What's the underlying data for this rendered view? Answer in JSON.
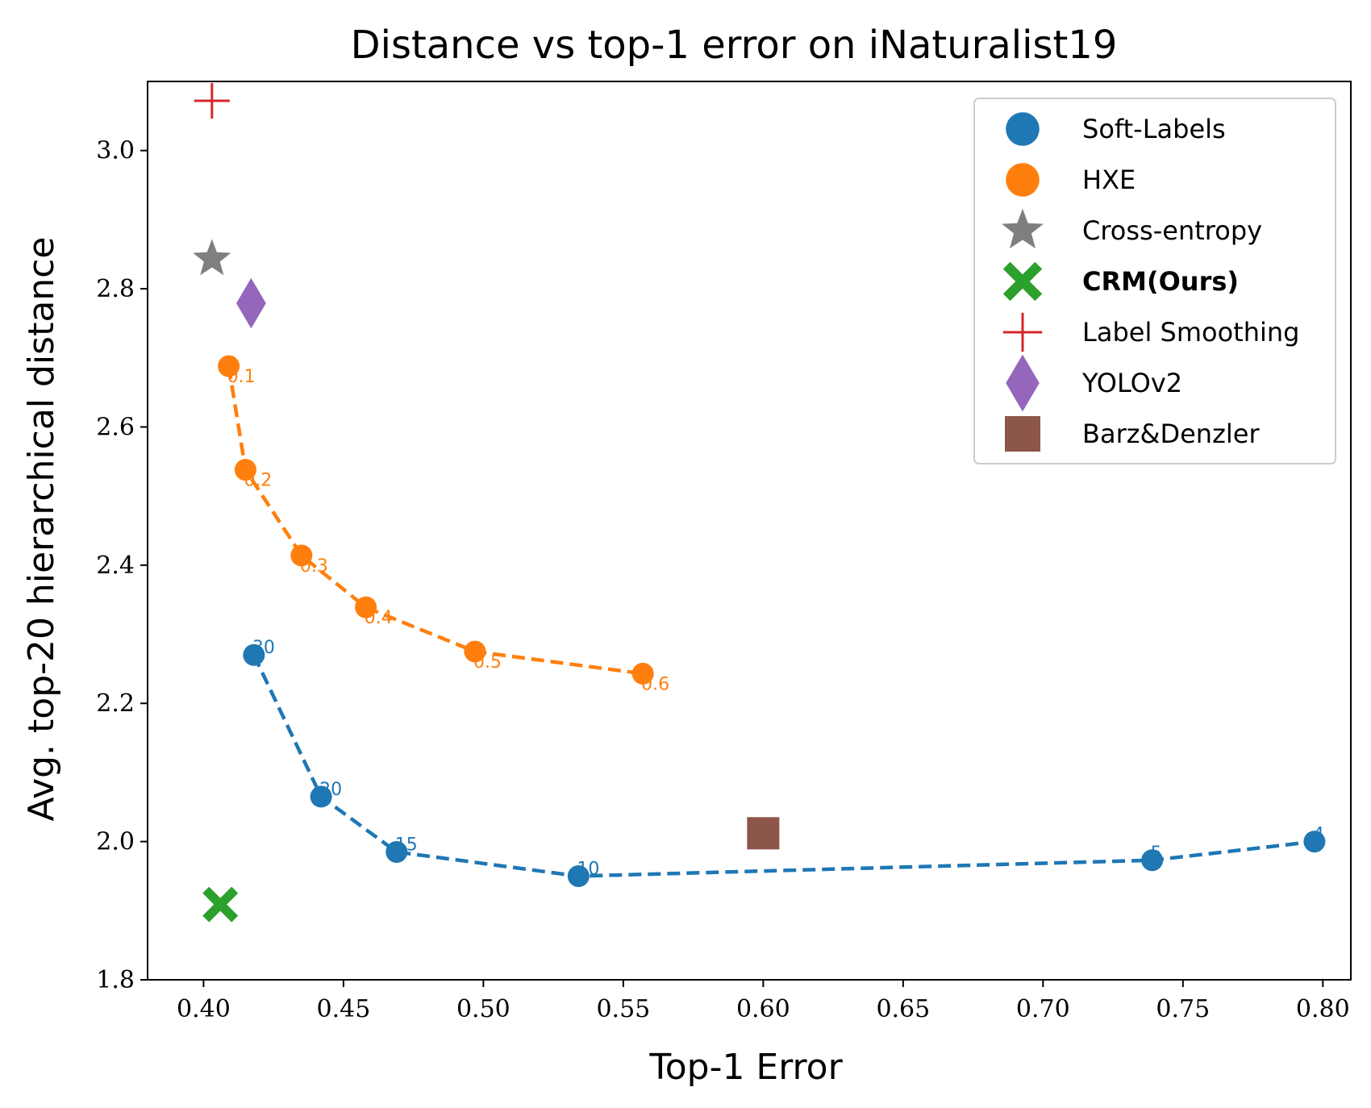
{
  "chart_data": {
    "type": "scatter",
    "title": "Distance vs top-1 error on iNaturalist19",
    "xlabel": "Top-1 Error",
    "ylabel": "Avg. top-20 hierarchical distance",
    "xlim": [
      0.38,
      0.81
    ],
    "ylim": [
      1.8,
      3.1
    ],
    "xticks": [
      0.4,
      0.45,
      0.5,
      0.55,
      0.6,
      0.65,
      0.7,
      0.75,
      0.8
    ],
    "xtick_labels": [
      "0.40",
      "0.45",
      "0.50",
      "0.55",
      "0.60",
      "0.65",
      "0.70",
      "0.75",
      "0.80"
    ],
    "yticks": [
      1.8,
      2.0,
      2.2,
      2.4,
      2.6,
      2.8,
      3.0
    ],
    "ytick_labels": [
      "1.8",
      "2.0",
      "2.2",
      "2.4",
      "2.6",
      "2.8",
      "3.0"
    ],
    "legend_position": "top-right",
    "series": [
      {
        "name": "Soft-Labels",
        "marker": "circle",
        "color": "#1f77b4",
        "line": "dashed",
        "x": [
          0.418,
          0.442,
          0.469,
          0.534,
          0.739,
          0.797
        ],
        "y": [
          2.27,
          2.065,
          1.985,
          1.95,
          1.973,
          2.0
        ],
        "labels": [
          "30",
          "20",
          "15",
          "10",
          "5",
          "4"
        ]
      },
      {
        "name": "HXE",
        "marker": "circle",
        "color": "#ff7f0e",
        "line": "dashed",
        "x": [
          0.409,
          0.415,
          0.435,
          0.458,
          0.497,
          0.557
        ],
        "y": [
          2.688,
          2.538,
          2.414,
          2.339,
          2.275,
          2.243
        ],
        "labels": [
          "0.1",
          "0.2",
          "0.3",
          "0.4",
          "0.5",
          "0.6"
        ]
      },
      {
        "name": "Cross-entropy",
        "marker": "star",
        "color": "#7f7f7f",
        "x": [
          0.403
        ],
        "y": [
          2.843
        ]
      },
      {
        "name": "CRM(Ours)",
        "marker": "x-filled",
        "color": "#2ca02c",
        "bold": true,
        "x": [
          0.406
        ],
        "y": [
          1.909
        ]
      },
      {
        "name": "Label Smoothing",
        "marker": "plus",
        "color": "#d62728",
        "x": [
          0.403
        ],
        "y": [
          3.072
        ]
      },
      {
        "name": "YOLOv2",
        "marker": "diamond",
        "color": "#9467bd",
        "x": [
          0.417
        ],
        "y": [
          2.779
        ]
      },
      {
        "name": "Barz&Denzler",
        "marker": "square",
        "color": "#8c564b",
        "x": [
          0.6
        ],
        "y": [
          2.012
        ]
      }
    ]
  }
}
